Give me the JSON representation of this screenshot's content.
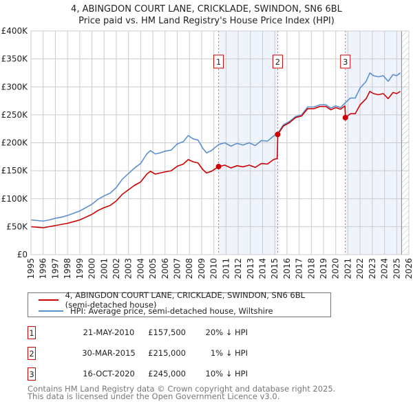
{
  "title": "4, ABINGDON COURT LANE, CRICKLADE, SWINDON, SN6 6BL",
  "subtitle": "Price paid vs. HM Land Registry's House Price Index (HPI)",
  "colors": {
    "property": "#cc0000",
    "hpi": "#5b8fd0",
    "shade": "#eef3fc",
    "grid": "#cccccc"
  },
  "legend": {
    "property": "4, ABINGDON COURT LANE, CRICKLADE, SWINDON, SN6 6BL (semi-detached house)",
    "hpi": "HPI: Average price, semi-detached house, Wiltshire"
  },
  "sales": [
    {
      "num": "1",
      "date": "21-MAY-2010",
      "price": "£157,500",
      "pct": "20% ↓ HPI",
      "x": 2010.39,
      "value": 157500
    },
    {
      "num": "2",
      "date": "30-MAR-2015",
      "price": "£215,000",
      "pct": "1% ↓ HPI",
      "x": 2015.24,
      "value": 215000
    },
    {
      "num": "3",
      "date": "16-OCT-2020",
      "price": "£245,000",
      "pct": "10% ↓ HPI",
      "x": 2020.79,
      "value": 245000
    }
  ],
  "footer": {
    "line1": "Contains HM Land Registry data © Crown copyright and database right 2025.",
    "line2": "This data is licensed under the Open Government Licence v3.0."
  },
  "chart_data": {
    "type": "line",
    "title": "4, ABINGDON COURT LANE, CRICKLADE, SWINDON, SN6 6BL",
    "xlim": [
      1995,
      2026
    ],
    "ylim": [
      0,
      400000
    ],
    "x_ticks": [
      "1995",
      "1996",
      "1997",
      "1998",
      "1999",
      "2000",
      "2001",
      "2002",
      "2003",
      "2004",
      "2005",
      "2006",
      "2007",
      "2008",
      "2009",
      "2010",
      "2011",
      "2012",
      "2013",
      "2014",
      "2015",
      "2016",
      "2017",
      "2018",
      "2019",
      "2020",
      "2021",
      "2022",
      "2023",
      "2024",
      "2025",
      "2026"
    ],
    "y_ticks": [
      {
        "v": 0,
        "label": "£0"
      },
      {
        "v": 50000,
        "label": "£50K"
      },
      {
        "v": 100000,
        "label": "£100K"
      },
      {
        "v": 150000,
        "label": "£150K"
      },
      {
        "v": 200000,
        "label": "£200K"
      },
      {
        "v": 250000,
        "label": "£250K"
      },
      {
        "v": 300000,
        "label": "£300K"
      },
      {
        "v": 350000,
        "label": "£350K"
      },
      {
        "v": 400000,
        "label": "£400K"
      }
    ],
    "shaded_ranges": [
      [
        2010.39,
        2015.24
      ],
      [
        2020.79,
        2025.4
      ]
    ],
    "future_hatch_from": 2025.4,
    "grid": true,
    "series": [
      {
        "name": "HPI: Average price, semi-detached house, Wiltshire",
        "color": "#5b8fd0",
        "x": [
          1995.0,
          1995.5,
          1996.0,
          1996.5,
          1997.0,
          1997.5,
          1998.0,
          1998.5,
          1999.0,
          1999.5,
          2000.0,
          2000.5,
          2001.0,
          2001.5,
          2002.0,
          2002.5,
          2003.0,
          2003.5,
          2004.0,
          2004.5,
          2004.8,
          2005.2,
          2005.6,
          2006.0,
          2006.5,
          2007.0,
          2007.5,
          2007.9,
          2008.3,
          2008.7,
          2009.1,
          2009.4,
          2009.8,
          2010.4,
          2010.9,
          2011.4,
          2011.9,
          2012.4,
          2012.9,
          2013.4,
          2013.9,
          2014.4,
          2014.9,
          2015.25,
          2015.7,
          2016.2,
          2016.7,
          2017.2,
          2017.7,
          2018.2,
          2018.7,
          2019.2,
          2019.6,
          2020.0,
          2020.4,
          2020.8,
          2021.2,
          2021.6,
          2022.0,
          2022.5,
          2022.8,
          2023.1,
          2023.5,
          2023.9,
          2024.3,
          2024.7,
          2025.0,
          2025.3
        ],
        "y": [
          62,
          61,
          60,
          62,
          65,
          67,
          70,
          74,
          78,
          84,
          90,
          99,
          105,
          110,
          120,
          135,
          145,
          155,
          163,
          180,
          186,
          180,
          182,
          185,
          187,
          198,
          202,
          213,
          207,
          205,
          190,
          182,
          186,
          197,
          200,
          194,
          199,
          196,
          200,
          195,
          204,
          203,
          212,
          217,
          232,
          238,
          247,
          250,
          264,
          264,
          268,
          268,
          262,
          266,
          263,
          272,
          280,
          280,
          298,
          310,
          325,
          320,
          318,
          320,
          310,
          322,
          320,
          325
        ]
      },
      {
        "name": "4, ABINGDON COURT LANE, CRICKLADE, SWINDON, SN6 6BL (semi-detached house)",
        "color": "#cc0000",
        "x": [
          1995.0,
          1995.5,
          1996.0,
          1996.5,
          1997.0,
          1997.5,
          1998.0,
          1998.5,
          1999.0,
          1999.5,
          2000.0,
          2000.5,
          2001.0,
          2001.5,
          2002.0,
          2002.5,
          2003.0,
          2003.5,
          2004.0,
          2004.5,
          2004.8,
          2005.2,
          2005.6,
          2006.0,
          2006.5,
          2007.0,
          2007.5,
          2007.9,
          2008.3,
          2008.7,
          2009.1,
          2009.4,
          2009.8,
          2010.4,
          2010.9,
          2011.4,
          2011.9,
          2012.4,
          2012.9,
          2013.4,
          2013.9,
          2014.4,
          2014.9,
          2015.2,
          2015.25,
          2015.7,
          2016.2,
          2016.7,
          2017.2,
          2017.7,
          2018.2,
          2018.7,
          2019.2,
          2019.6,
          2020.0,
          2020.4,
          2020.75,
          2020.8,
          2021.2,
          2021.6,
          2022.0,
          2022.5,
          2022.8,
          2023.1,
          2023.5,
          2023.9,
          2024.3,
          2024.7,
          2025.0,
          2025.3
        ],
        "y": [
          50,
          49,
          48,
          50,
          52,
          54,
          56,
          59,
          62,
          67,
          72,
          79,
          84,
          88,
          96,
          108,
          116,
          124,
          130,
          144,
          149,
          144,
          146,
          148,
          150,
          158,
          162,
          170,
          166,
          164,
          152,
          146,
          149,
          157.5,
          160,
          155,
          159,
          157,
          160,
          156,
          163,
          162,
          170,
          172,
          215,
          230,
          236,
          245,
          248,
          261,
          261,
          265,
          265,
          259,
          263,
          260,
          266,
          245,
          252,
          252,
          268,
          279,
          292,
          288,
          286,
          288,
          279,
          290,
          288,
          292
        ]
      }
    ],
    "y_units": "thousands GBP"
  }
}
